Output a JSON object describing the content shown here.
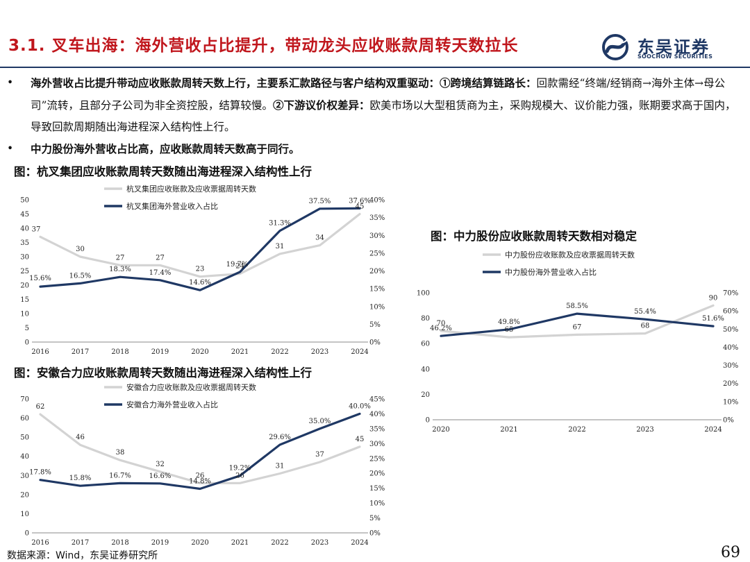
{
  "header": {
    "title": "3.1. 叉车出海：海外营收占比提升，带动龙头应收账款周转天数拉长",
    "logo_cn": "东吴证券",
    "logo_en": "SOOCHOW SECURITIES",
    "colors": {
      "title": "#c0161c",
      "brand": "#1f3864"
    }
  },
  "bullets": [
    {
      "marker": "•",
      "bold_lead": "海外营收占比提升带动应收账款周转天数上行，主要系汇款路径与客户结构双重驱动：①跨境结算链路长：",
      "text1": "回款需经“终端/经销商→海外主体→母公司”流转，且部分子公司为非全资控股，结算较慢。",
      "bold_mid": "②下游议价权差异：",
      "text2": "欧美市场以大型租赁商为主，采购规模大、议价能力强，账期要求高于国内，导致回款周期随出海进程深入结构性上行。"
    },
    {
      "marker": "•",
      "bold_lead": "中力股份海外营收占比高，应收账款周转天数高于同行。"
    }
  ],
  "figures": {
    "fig1_title": "图：杭叉集团应收账款周转天数随出海进程深入结构性上行",
    "fig2_title": "图：安徽合力应收账款周转天数随出海进程深入结构性上行",
    "fig3_title": "图：中力股份应收账款周转天数相对稳定"
  },
  "chart_data": [
    {
      "id": "hangcha",
      "type": "line",
      "title": "图：杭叉集团应收账款周转天数随出海进程深入结构性上行",
      "x": [
        "2016",
        "2017",
        "2018",
        "2019",
        "2020",
        "2021",
        "2022",
        "2023",
        "2024"
      ],
      "series": [
        {
          "name": "杭叉集团应收账款及应收票据周转天数",
          "axis": "left",
          "color": "#d3d3d3",
          "values": [
            37,
            30,
            27,
            27,
            23,
            24,
            31,
            34,
            45
          ],
          "labels": [
            "37",
            "30",
            "27",
            "27",
            "23",
            "24",
            "31",
            "34",
            "45"
          ]
        },
        {
          "name": "杭叉集团海外营业收入占比",
          "axis": "right",
          "color": "#1f3864",
          "values": [
            15.6,
            16.5,
            18.3,
            17.4,
            14.6,
            19.7,
            31.3,
            37.5,
            37.6
          ],
          "labels": [
            "15.6%",
            "16.5%",
            "18.3%",
            "17.4%",
            "14.6%",
            "19.7%",
            "31.3%",
            "37.5%",
            "37.6%"
          ]
        }
      ],
      "left_axis": {
        "min": 0,
        "max": 50,
        "step": 5,
        "ticks": [
          "0",
          "5",
          "10",
          "15",
          "20",
          "25",
          "30",
          "35",
          "40",
          "45",
          "50"
        ]
      },
      "right_axis": {
        "min": 0,
        "max": 40,
        "step": 5,
        "ticks": [
          "0%",
          "5%",
          "10%",
          "15%",
          "20%",
          "25%",
          "30%",
          "35%",
          "40%"
        ]
      },
      "grid": false,
      "legend_position": "top"
    },
    {
      "id": "heli",
      "type": "line",
      "title": "图：安徽合力应收账款周转天数随出海进程深入结构性上行",
      "x": [
        "2016",
        "2017",
        "2018",
        "2019",
        "2020",
        "2021",
        "2022",
        "2023",
        "2024"
      ],
      "series": [
        {
          "name": "安徽合力应收账款及应收票据周转天数",
          "axis": "left",
          "color": "#d3d3d3",
          "values": [
            62,
            46,
            38,
            32,
            26,
            26,
            31,
            37,
            45
          ],
          "labels": [
            "62",
            "46",
            "38",
            "32",
            "26",
            "26",
            "31",
            "37",
            "45"
          ]
        },
        {
          "name": "安徽合力海外营业收入占比",
          "axis": "right",
          "color": "#1f3864",
          "values": [
            17.8,
            15.8,
            16.7,
            16.6,
            14.8,
            19.2,
            29.6,
            35.0,
            40.0
          ],
          "labels": [
            "17.8%",
            "15.8%",
            "16.7%",
            "16.6%",
            "14.8%",
            "19.2%",
            "29.6%",
            "35.0%",
            "40.0%"
          ]
        }
      ],
      "left_axis": {
        "min": 0,
        "max": 70,
        "step": 10,
        "ticks": [
          "0",
          "10",
          "20",
          "30",
          "40",
          "50",
          "60",
          "70"
        ]
      },
      "right_axis": {
        "min": 0,
        "max": 45,
        "step": 5,
        "ticks": [
          "0%",
          "5%",
          "10%",
          "15%",
          "20%",
          "25%",
          "30%",
          "35%",
          "40%",
          "45%"
        ]
      },
      "grid": false,
      "legend_position": "top"
    },
    {
      "id": "zhongli",
      "type": "line",
      "title": "图：中力股份应收账款周转天数相对稳定",
      "x": [
        "2020",
        "2021",
        "2022",
        "2023",
        "2024"
      ],
      "series": [
        {
          "name": "中力股份应收账款及应收票据周转天数",
          "axis": "left",
          "color": "#d3d3d3",
          "values": [
            70,
            65,
            67,
            68,
            90
          ],
          "labels": [
            "70",
            "65",
            "67",
            "68",
            "90"
          ]
        },
        {
          "name": "中力股份海外营业收入占比",
          "axis": "right",
          "color": "#1f3864",
          "values": [
            46.2,
            49.8,
            58.5,
            55.4,
            51.6
          ],
          "labels": [
            "46.2%",
            "49.8%",
            "58.5%",
            "55.4%",
            "51.6%"
          ]
        }
      ],
      "left_axis": {
        "min": 0,
        "max": 100,
        "step": 20,
        "ticks": [
          "0",
          "20",
          "40",
          "60",
          "80",
          "100"
        ]
      },
      "right_axis": {
        "min": 0,
        "max": 70,
        "step": 10,
        "ticks": [
          "0%",
          "10%",
          "20%",
          "30%",
          "40%",
          "50%",
          "60%",
          "70%"
        ]
      },
      "grid": false,
      "legend_position": "top"
    }
  ],
  "footer": {
    "source": "数据来源：Wind，东吴证券研究所",
    "page": "69"
  }
}
